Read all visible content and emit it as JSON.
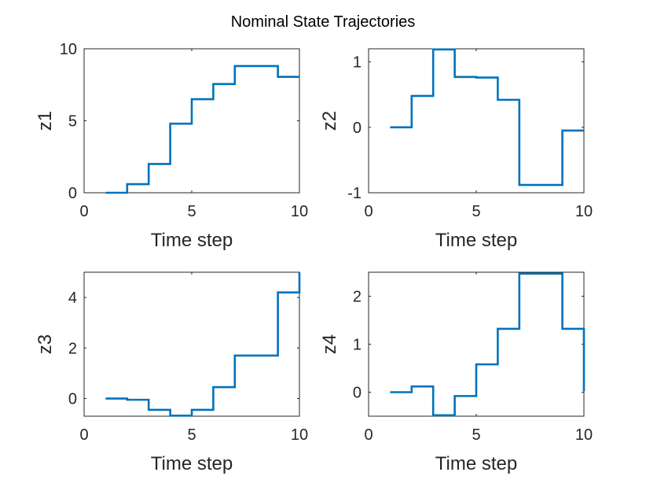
{
  "figure": {
    "title": "Nominal State Trajectories",
    "background": "#ffffff",
    "line_color": "#0072bd",
    "axes_color": "#262626"
  },
  "chart_data": [
    {
      "type": "line",
      "title": "",
      "xlabel": "Time step",
      "ylabel": "z1",
      "xlim": [
        0,
        10
      ],
      "ylim": [
        0,
        10
      ],
      "xticks": [
        0,
        5,
        10
      ],
      "yticks": [
        0,
        5,
        10
      ],
      "grid": false,
      "series": [
        {
          "x": [
            1,
            2,
            3,
            4,
            5,
            6,
            7,
            8,
            9,
            10
          ],
          "y": [
            0.0,
            0.6,
            2.0,
            4.8,
            6.5,
            7.55,
            8.8,
            8.8,
            8.05,
            8.05
          ]
        }
      ]
    },
    {
      "type": "line",
      "title": "",
      "xlabel": "Time step",
      "ylabel": "z2",
      "xlim": [
        0,
        10
      ],
      "ylim": [
        -1,
        1.2
      ],
      "xticks": [
        0,
        5,
        10
      ],
      "yticks": [
        -1,
        0,
        1
      ],
      "grid": false,
      "series": [
        {
          "x": [
            1,
            2,
            3,
            4,
            5,
            6,
            7,
            8,
            9,
            10
          ],
          "y": [
            0.0,
            0.48,
            1.19,
            0.77,
            0.76,
            0.42,
            -0.88,
            -0.88,
            -0.05,
            -0.05
          ]
        }
      ]
    },
    {
      "type": "line",
      "title": "",
      "xlabel": "Time step",
      "ylabel": "z3",
      "xlim": [
        0,
        10
      ],
      "ylim": [
        -0.7,
        5
      ],
      "xticks": [
        0,
        5,
        10
      ],
      "yticks": [
        0,
        2,
        4
      ],
      "grid": false,
      "series": [
        {
          "x": [
            1,
            2,
            3,
            4,
            5,
            6,
            7,
            8,
            9,
            10
          ],
          "y": [
            0.0,
            -0.05,
            -0.45,
            -0.68,
            -0.45,
            0.45,
            1.7,
            1.7,
            4.2,
            5.0
          ]
        }
      ]
    },
    {
      "type": "line",
      "title": "",
      "xlabel": "Time step",
      "ylabel": "z4",
      "xlim": [
        0,
        10
      ],
      "ylim": [
        -0.5,
        2.5
      ],
      "xticks": [
        0,
        5,
        10
      ],
      "yticks": [
        0,
        1,
        2
      ],
      "grid": false,
      "series": [
        {
          "x": [
            1,
            2,
            3,
            4,
            5,
            6,
            7,
            8,
            9,
            10
          ],
          "y": [
            0.0,
            0.12,
            -0.48,
            -0.08,
            0.58,
            1.32,
            2.47,
            2.47,
            1.32,
            0.02
          ]
        }
      ]
    }
  ]
}
